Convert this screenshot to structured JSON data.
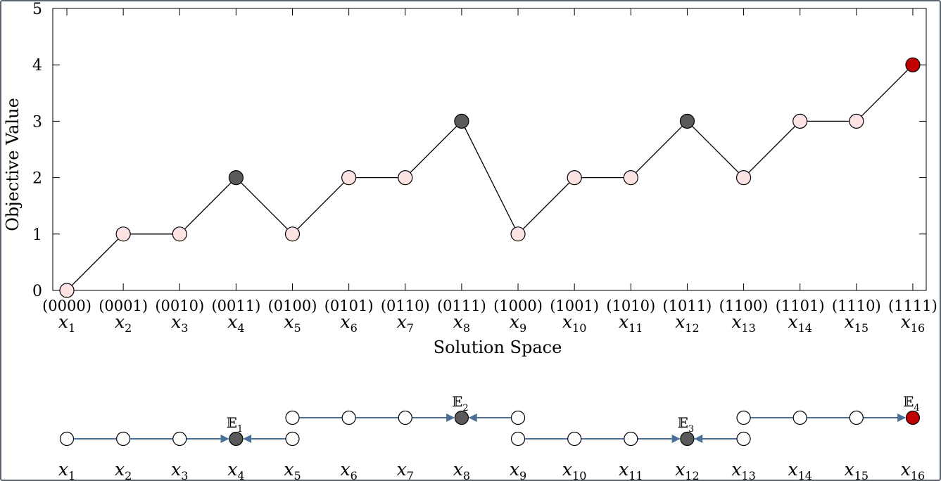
{
  "chart_data": [
    {
      "type": "line",
      "title": "",
      "xlabel": "Solution Space",
      "ylabel": "Objective Value",
      "ylim": [
        0,
        5
      ],
      "yticks": [
        "0",
        "1",
        "2",
        "3",
        "4",
        "5"
      ],
      "x": [
        "x1",
        "x2",
        "x3",
        "x4",
        "x5",
        "x6",
        "x7",
        "x8",
        "x9",
        "x10",
        "x11",
        "x12",
        "x13",
        "x14",
        "x15",
        "x16"
      ],
      "x_binary": [
        "(0000)",
        "(0001)",
        "(0010)",
        "(0011)",
        "(0100)",
        "(0101)",
        "(0110)",
        "(0111)",
        "(1000)",
        "(1001)",
        "(1010)",
        "(1011)",
        "(1100)",
        "(1101)",
        "(1110)",
        "(1111)"
      ],
      "values": [
        0,
        1,
        1,
        2,
        1,
        2,
        2,
        3,
        1,
        2,
        2,
        3,
        2,
        3,
        3,
        4
      ],
      "point_kind": [
        "normal",
        "normal",
        "normal",
        "local_optimum",
        "normal",
        "normal",
        "normal",
        "local_optimum",
        "normal",
        "normal",
        "normal",
        "local_optimum",
        "normal",
        "normal",
        "normal",
        "global_optimum"
      ],
      "grid": false,
      "legend": "none"
    },
    {
      "type": "diagram",
      "x": [
        "x1",
        "x2",
        "x3",
        "x4",
        "x5",
        "x6",
        "x7",
        "x8",
        "x9",
        "x10",
        "x11",
        "x12",
        "x13",
        "x14",
        "x15",
        "x16"
      ],
      "row": [
        "low",
        "low",
        "low",
        "low",
        "low",
        "high",
        "high",
        "high",
        "low",
        "low",
        "low",
        "low",
        "low",
        "high",
        "high",
        "high"
      ],
      "extra_nodes": [
        {
          "index": 5,
          "row": "high",
          "note": "x5 appears in both rows"
        },
        {
          "index": 9,
          "row": "high",
          "note": "x9 appears in both rows"
        },
        {
          "index": 13,
          "row": "high",
          "note": "x13 appears in both rows"
        }
      ],
      "basins": [
        {
          "label": "E",
          "sub": "1",
          "optimum": "x4",
          "kind": "local_optimum"
        },
        {
          "label": "E",
          "sub": "2",
          "optimum": "x8",
          "kind": "local_optimum"
        },
        {
          "label": "E",
          "sub": "3",
          "optimum": "x12",
          "kind": "local_optimum"
        },
        {
          "label": "E",
          "sub": "4",
          "optimum": "x16",
          "kind": "global_optimum"
        }
      ]
    }
  ],
  "colors": {
    "normal_fill": "#fde3e3",
    "local_optimum_fill": "#5a5a5a",
    "global_optimum_fill": "#c00000",
    "empty_node_fill": "#ffffff",
    "arrow": "#4a6f96",
    "line": "#000000",
    "frame": "#5a6570"
  }
}
